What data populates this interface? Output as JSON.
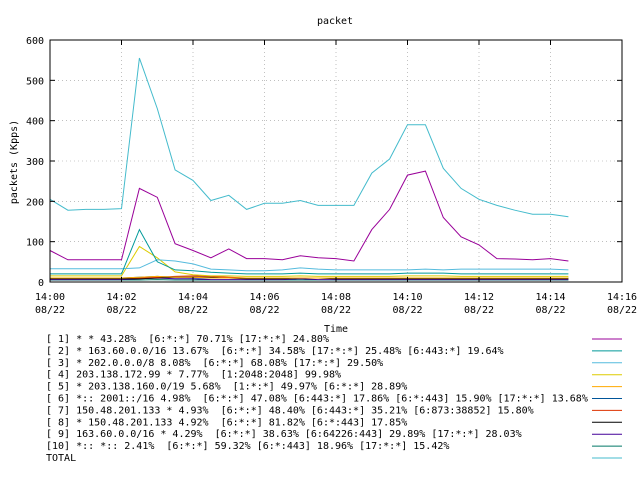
{
  "chart_data": {
    "type": "line",
    "title": "packet",
    "xlabel": "Time",
    "ylabel": "packets (Kpps)",
    "xlim": [
      0,
      16
    ],
    "ylim": [
      0,
      600
    ],
    "y_ticks": [
      0,
      100,
      200,
      300,
      400,
      500,
      600
    ],
    "x_ticks": [
      {
        "x": 0,
        "time": "14:00",
        "date": "08/22"
      },
      {
        "x": 2,
        "time": "14:02",
        "date": "08/22"
      },
      {
        "x": 4,
        "time": "14:04",
        "date": "08/22"
      },
      {
        "x": 6,
        "time": "14:06",
        "date": "08/22"
      },
      {
        "x": 8,
        "time": "14:08",
        "date": "08/22"
      },
      {
        "x": 10,
        "time": "14:10",
        "date": "08/22"
      },
      {
        "x": 12,
        "time": "14:12",
        "date": "08/22"
      },
      {
        "x": 14,
        "time": "14:14",
        "date": "08/22"
      },
      {
        "x": 16,
        "time": "14:16",
        "date": "08/22"
      }
    ],
    "x": [
      0,
      0.5,
      1,
      1.5,
      2,
      2.5,
      3,
      3.5,
      4,
      4.5,
      5,
      5.5,
      6,
      6.5,
      7,
      7.5,
      8,
      8.5,
      9,
      9.5,
      10,
      10.5,
      11,
      11.5,
      12,
      12.5,
      13,
      13.5,
      14,
      14.5
    ],
    "series": [
      {
        "name": "[ 1] * * 43.28%  [6:*:*] 70.71% [17:*:*] 24.80%",
        "color": "#990099",
        "values": [
          78,
          55,
          55,
          55,
          55,
          232,
          210,
          95,
          78,
          60,
          82,
          58,
          58,
          55,
          65,
          60,
          58,
          52,
          130,
          180,
          265,
          275,
          160,
          112,
          92,
          58,
          57,
          55,
          58,
          52
        ]
      },
      {
        "name": "[ 2] * 163.60.0.0/16 13.67%  [6:*:*] 34.58% [17:*:*] 25.48% [6:443:*] 19.64%",
        "color": "#009999",
        "values": [
          20,
          20,
          20,
          20,
          20,
          130,
          50,
          30,
          28,
          24,
          22,
          20,
          20,
          20,
          22,
          20,
          20,
          20,
          20,
          20,
          22,
          22,
          22,
          20,
          20,
          20,
          20,
          20,
          20,
          20
        ]
      },
      {
        "name": "[ 3] * 202.0.0.0/8 8.08%  [6:*:*] 68.08% [17:*:*] 29.50%",
        "color": "#55bbdd",
        "values": [
          33,
          33,
          33,
          33,
          33,
          35,
          55,
          52,
          45,
          32,
          30,
          28,
          28,
          30,
          35,
          32,
          30,
          30,
          30,
          30,
          30,
          32,
          30,
          32,
          32,
          32,
          32,
          32,
          32,
          30
        ]
      },
      {
        "name": "[ 4] 203.138.172.99 * 7.77%  [1:2048:2048] 99.98%",
        "color": "#ddcc00",
        "values": [
          15,
          15,
          15,
          15,
          15,
          88,
          60,
          25,
          18,
          15,
          15,
          14,
          14,
          14,
          15,
          14,
          14,
          14,
          14,
          14,
          15,
          15,
          15,
          14,
          14,
          14,
          14,
          14,
          14,
          14
        ]
      },
      {
        "name": "[ 5] * 203.138.160.0/19 5.68%  [1:*:*] 49.97% [6:*:*] 28.89%",
        "color": "#ffaa00",
        "values": [
          10,
          10,
          10,
          10,
          10,
          12,
          14,
          12,
          12,
          10,
          10,
          10,
          10,
          10,
          10,
          10,
          10,
          10,
          10,
          10,
          10,
          10,
          10,
          10,
          10,
          10,
          10,
          10,
          10,
          10
        ]
      },
      {
        "name": "[ 6] *:: 2001::/16 4.98%  [6:*:*] 47.08% [6:443:*] 17.86% [6:*:443] 15.90% [17:*:*] 13.68%",
        "color": "#005599",
        "values": [
          10,
          10,
          10,
          10,
          10,
          12,
          14,
          12,
          11,
          10,
          10,
          10,
          10,
          10,
          10,
          10,
          10,
          10,
          10,
          10,
          10,
          10,
          10,
          10,
          10,
          10,
          10,
          10,
          10,
          10
        ]
      },
      {
        "name": "[ 7] 150.48.201.133 * 4.93%  [6:*:*] 48.40% [6:443:*] 35.21% [6:873:38852] 15.80%",
        "color": "#dd3300",
        "values": [
          10,
          10,
          10,
          10,
          10,
          10,
          12,
          14,
          15,
          14,
          12,
          10,
          10,
          10,
          10,
          10,
          10,
          10,
          10,
          10,
          10,
          10,
          10,
          10,
          10,
          10,
          10,
          10,
          10,
          10
        ]
      },
      {
        "name": "[ 8] * 150.48.201.133 4.92%  [6:*:*] 81.82% [6:*:443] 17.85%",
        "color": "#000000",
        "values": [
          8,
          8,
          8,
          8,
          8,
          8,
          10,
          12,
          12,
          12,
          10,
          8,
          8,
          8,
          10,
          10,
          8,
          8,
          8,
          8,
          8,
          8,
          8,
          8,
          8,
          8,
          8,
          8,
          8,
          8
        ]
      },
      {
        "name": "[ 9] 163.60.0.0/16 * 4.29%  [6:*:*] 38.63% [6:64226:443] 29.89% [17:*:*] 28.03%",
        "color": "#440099",
        "values": [
          6,
          6,
          6,
          6,
          6,
          8,
          10,
          8,
          8,
          6,
          6,
          6,
          6,
          6,
          8,
          6,
          6,
          6,
          6,
          6,
          6,
          6,
          6,
          6,
          6,
          6,
          6,
          6,
          6,
          6
        ]
      },
      {
        "name": "[10] *:: *:: 2.41%  [6:*:*] 59.32% [6:*:443] 18.96% [17:*:*] 15.42%",
        "color": "#007766",
        "values": [
          5,
          5,
          5,
          5,
          5,
          5,
          6,
          5,
          5,
          5,
          5,
          5,
          5,
          5,
          5,
          5,
          5,
          5,
          5,
          5,
          5,
          5,
          5,
          5,
          5,
          5,
          5,
          5,
          5,
          5
        ]
      },
      {
        "name": "TOTAL",
        "color": "#44bbcc",
        "values": [
          205,
          178,
          180,
          180,
          182,
          555,
          430,
          278,
          252,
          202,
          215,
          180,
          195,
          195,
          202,
          190,
          190,
          190,
          270,
          305,
          390,
          390,
          282,
          232,
          205,
          190,
          178,
          168,
          168,
          162
        ]
      }
    ]
  }
}
